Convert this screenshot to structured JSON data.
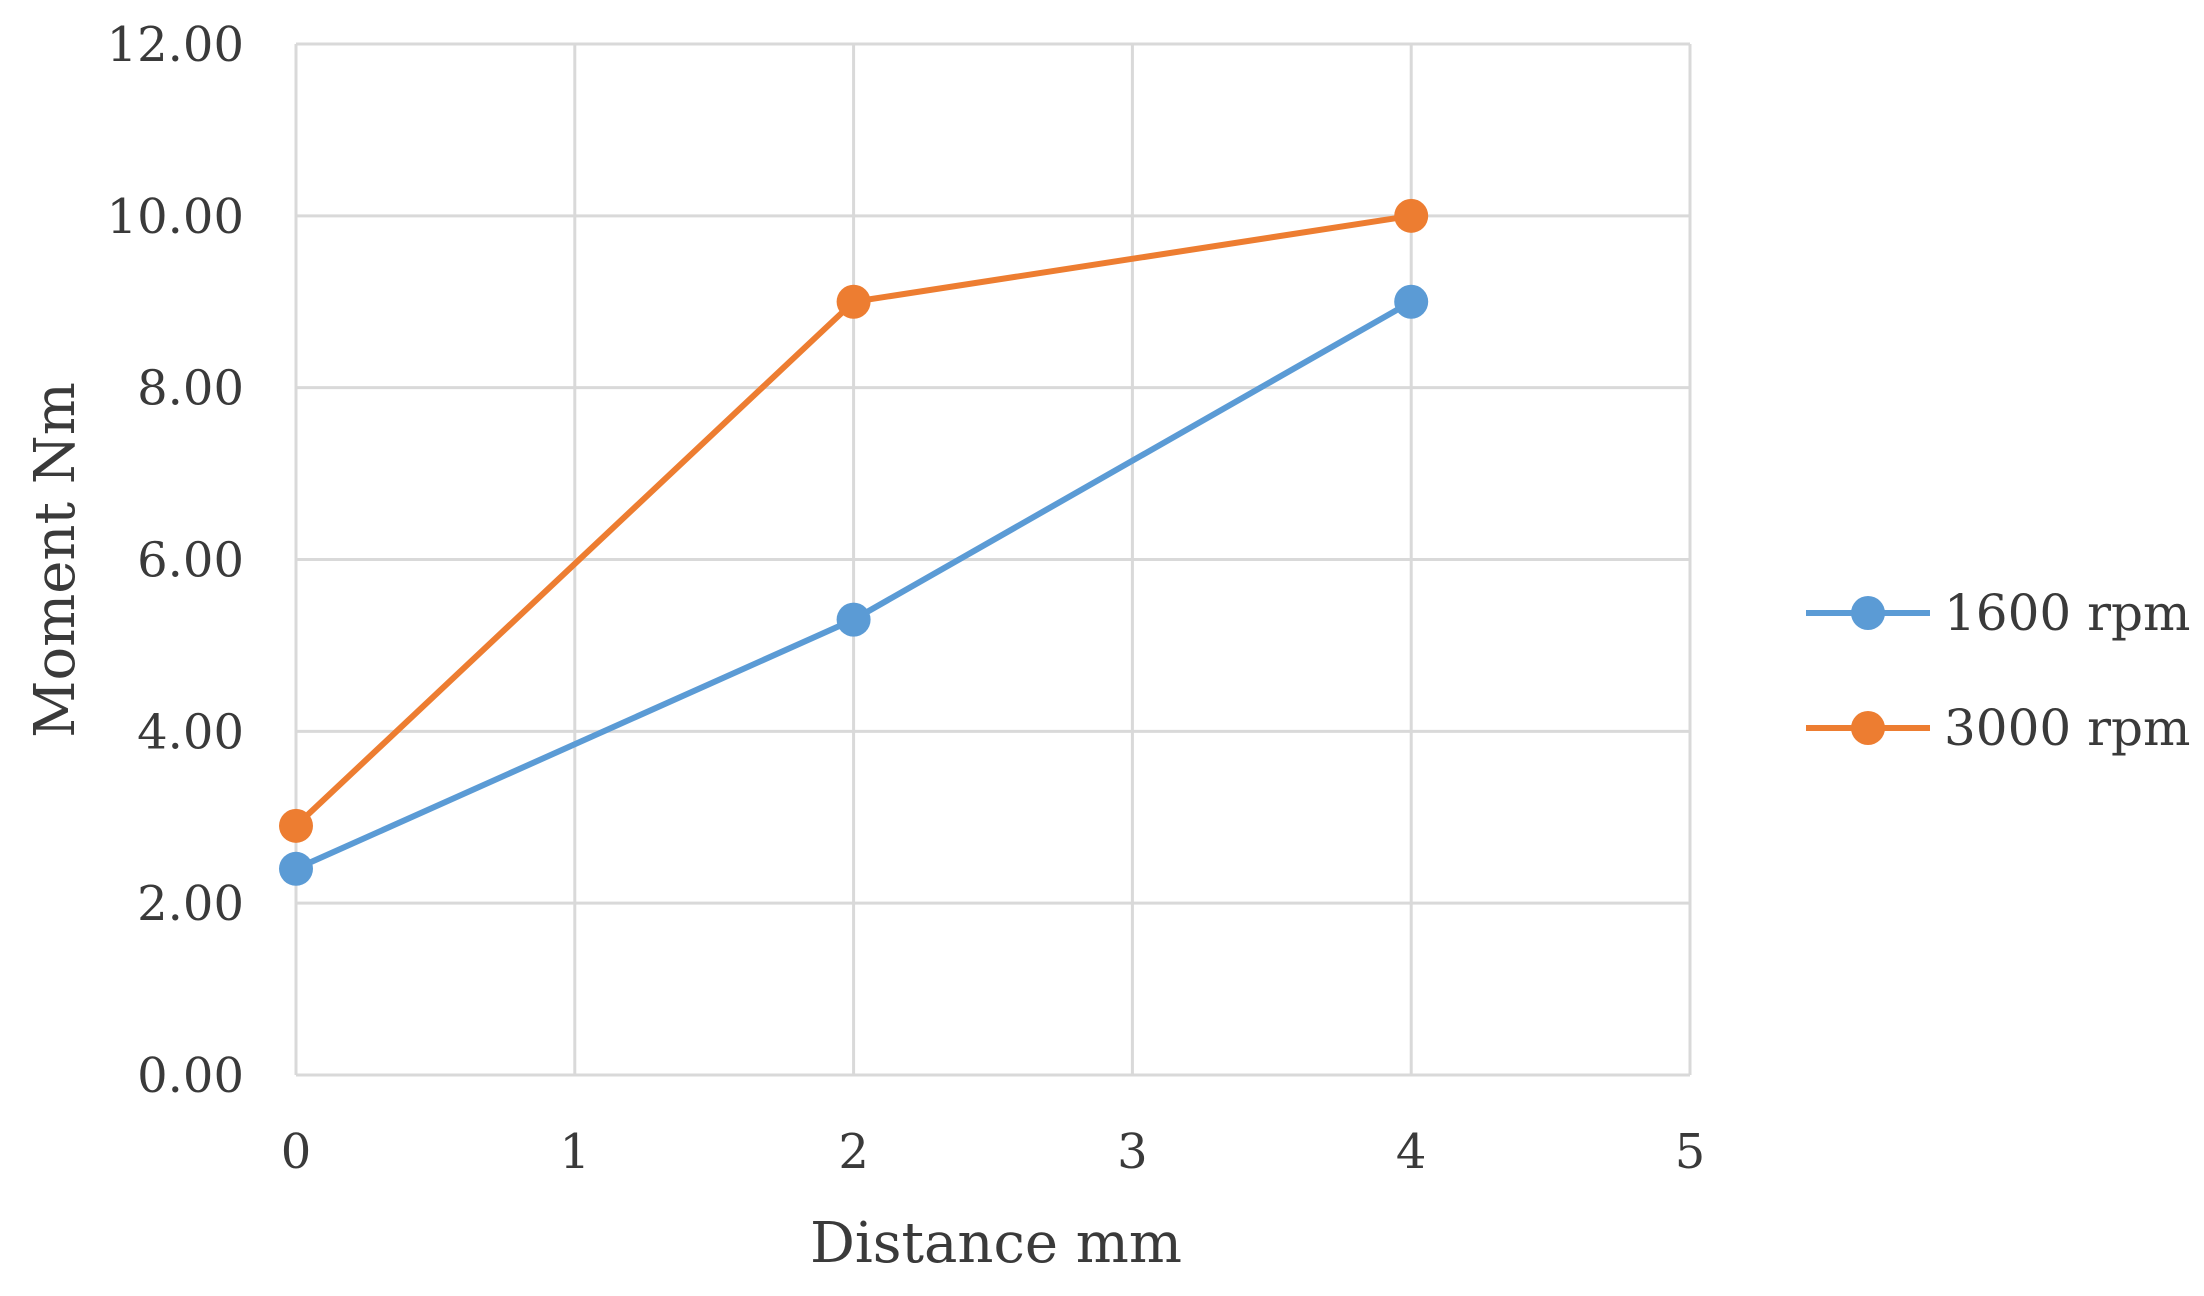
{
  "chart_data": {
    "type": "line",
    "title": "",
    "xlabel": "Distance mm",
    "ylabel": "Moment Nm",
    "xlim": [
      0,
      5
    ],
    "ylim": [
      0,
      12
    ],
    "x_ticks": [
      0,
      1,
      2,
      3,
      4,
      5
    ],
    "x_tick_labels": [
      "0",
      "1",
      "2",
      "3",
      "4",
      "5"
    ],
    "y_ticks": [
      0,
      2,
      4,
      6,
      8,
      10,
      12
    ],
    "y_tick_labels": [
      "0.00",
      "2.00",
      "4.00",
      "6.00",
      "8.00",
      "10.00",
      "12.00"
    ],
    "grid": true,
    "legend_position": "right",
    "series": [
      {
        "name": "1600 rpm",
        "color": "#5b9bd5",
        "x": [
          0,
          2,
          4
        ],
        "y": [
          2.4,
          5.3,
          9.0
        ]
      },
      {
        "name": "3000 rpm",
        "color": "#ed7d31",
        "x": [
          0,
          2,
          4
        ],
        "y": [
          2.9,
          9.0,
          10.0
        ]
      }
    ]
  }
}
